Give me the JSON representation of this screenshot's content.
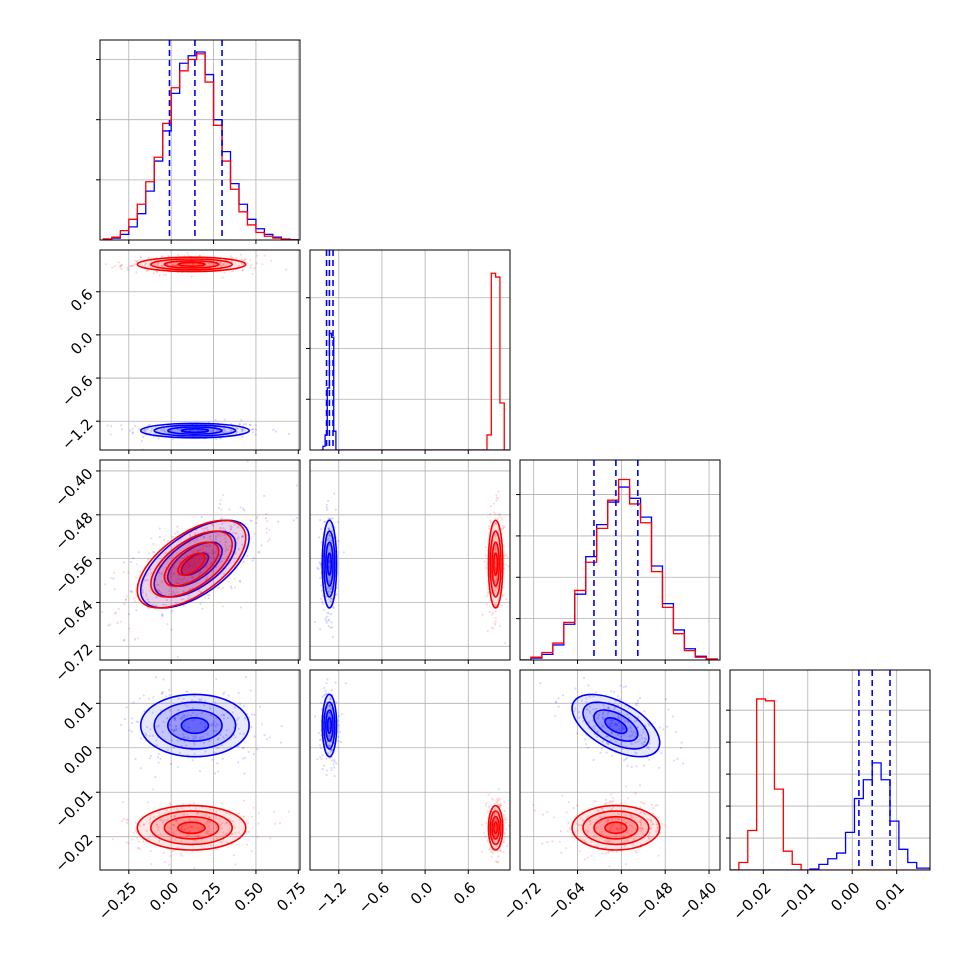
{
  "colors": {
    "blue": "#0000ff",
    "red": "#ff0000",
    "grid": "#b0b0b0"
  },
  "chart_data": {
    "type": "corner",
    "params": [
      {
        "range": [
          -0.42,
          0.76
        ],
        "ticks": [
          -0.25,
          0.0,
          0.25,
          0.5,
          0.75
        ],
        "tick_labels": [
          "−0.25",
          "0.00",
          "0.25",
          "0.50",
          "0.75"
        ]
      },
      {
        "range": [
          -1.6,
          1.18
        ],
        "ticks": [
          -1.2,
          -0.6,
          0.0,
          0.6
        ],
        "tick_labels": [
          "−1.2",
          "−0.6",
          "0.0",
          "0.6"
        ]
      },
      {
        "range": [
          -0.745,
          -0.38
        ],
        "ticks": [
          -0.72,
          -0.64,
          -0.56,
          -0.48,
          -0.4
        ],
        "tick_labels": [
          "−0.72",
          "−0.64",
          "−0.56",
          "−0.48",
          "−0.40"
        ]
      },
      {
        "range": [
          -0.0275,
          0.0175
        ],
        "ticks": [
          -0.02,
          -0.01,
          0.0,
          0.01
        ],
        "tick_labels": [
          "−0.02",
          "−0.01",
          "0.00",
          "0.01"
        ]
      }
    ],
    "series": [
      {
        "color": "blue",
        "means": [
          0.14,
          -1.33,
          -0.57,
          0.005
        ],
        "sds": [
          0.16,
          0.05,
          0.04,
          0.0035
        ],
        "quantiles": [
          [
            -0.01,
            0.14,
            0.3
          ],
          [
            -1.37,
            -1.33,
            -1.28
          ],
          [
            -0.61,
            -0.57,
            -0.53
          ],
          [
            0.0015,
            0.0045,
            0.0085
          ]
        ],
        "corr_13": 0.6,
        "corr_34": -0.55
      },
      {
        "color": "red",
        "means": [
          0.12,
          0.98,
          -0.57,
          -0.018
        ],
        "sds": [
          0.16,
          0.05,
          0.04,
          0.0025
        ],
        "corr_13": 0.6,
        "corr_34": 0.0
      }
    ],
    "histograms": [
      {
        "param": 0,
        "ymax": 1.0,
        "ticks": [
          0.32,
          0.64,
          0.96
        ],
        "edges": [
          -0.4,
          -0.35,
          -0.3,
          -0.25,
          -0.2,
          -0.15,
          -0.1,
          -0.05,
          0.0,
          0.05,
          0.1,
          0.15,
          0.2,
          0.25,
          0.3,
          0.35,
          0.4,
          0.45,
          0.5,
          0.55,
          0.6,
          0.65,
          0.7,
          0.75
        ],
        "blue": [
          0.005,
          0.01,
          0.03,
          0.07,
          0.14,
          0.26,
          0.42,
          0.58,
          0.78,
          0.94,
          0.98,
          1.0,
          0.88,
          0.64,
          0.47,
          0.3,
          0.19,
          0.11,
          0.06,
          0.03,
          0.015,
          0.005,
          0.002
        ],
        "red": [
          0.005,
          0.015,
          0.05,
          0.11,
          0.19,
          0.31,
          0.44,
          0.62,
          0.81,
          0.9,
          0.96,
          0.99,
          0.84,
          0.61,
          0.42,
          0.27,
          0.15,
          0.08,
          0.04,
          0.02,
          0.01,
          0.004,
          0.001
        ]
      },
      {
        "param": 1,
        "ymax": 1.0,
        "ticks": [
          0.27,
          0.54,
          0.81
        ],
        "edges": [
          -1.45,
          -1.42,
          -1.39,
          -1.36,
          -1.33,
          -1.3,
          -1.27,
          -1.24,
          0.86,
          0.92,
          0.98,
          1.04,
          1.1,
          1.16
        ],
        "blue": [
          0.0,
          0.02,
          0.08,
          0.33,
          0.62,
          0.6,
          0.1,
          0.0,
          0.0,
          0.0,
          0.0,
          0.0,
          0.0
        ],
        "red": [
          0.0,
          0.0,
          0.0,
          0.0,
          0.0,
          0.0,
          0.0,
          0.0,
          0.08,
          0.94,
          0.92,
          0.25,
          0.0
        ]
      },
      {
        "param": 2,
        "ymax": 1.0,
        "ticks": [
          0.22,
          0.44,
          0.66,
          0.88
        ],
        "edges": [
          -0.745,
          -0.725,
          -0.705,
          -0.685,
          -0.665,
          -0.645,
          -0.625,
          -0.605,
          -0.585,
          -0.565,
          -0.545,
          -0.525,
          -0.505,
          -0.485,
          -0.465,
          -0.445,
          -0.425,
          -0.405,
          -0.385
        ],
        "blue": [
          0.0,
          0.01,
          0.03,
          0.08,
          0.19,
          0.35,
          0.55,
          0.72,
          0.84,
          0.92,
          0.86,
          0.76,
          0.5,
          0.3,
          0.16,
          0.06,
          0.02,
          0.005
        ],
        "red": [
          0.0,
          0.015,
          0.04,
          0.09,
          0.2,
          0.37,
          0.52,
          0.7,
          0.85,
          0.96,
          0.83,
          0.73,
          0.47,
          0.28,
          0.14,
          0.05,
          0.015,
          0.005
        ]
      },
      {
        "param": 3,
        "ymax": 1.0,
        "ticks": [
          0.17,
          0.34,
          0.51,
          0.68,
          0.85
        ],
        "edges": [
          -0.0275,
          -0.0255,
          -0.0235,
          -0.0215,
          -0.0195,
          -0.0175,
          -0.0155,
          -0.0135,
          -0.0115,
          -0.0095,
          -0.0075,
          -0.0055,
          -0.0035,
          -0.0015,
          0.0005,
          0.0025,
          0.0045,
          0.0065,
          0.0085,
          0.0105,
          0.0125,
          0.0145,
          0.0175
        ],
        "blue": [
          0.0,
          0.0,
          0.0,
          0.0,
          0.0,
          0.0,
          0.0,
          0.0,
          0.0,
          0.005,
          0.03,
          0.06,
          0.09,
          0.2,
          0.38,
          0.48,
          0.57,
          0.48,
          0.26,
          0.11,
          0.04,
          0.01
        ],
        "red": [
          0.0,
          0.04,
          0.21,
          0.91,
          0.9,
          0.43,
          0.1,
          0.03,
          0.0,
          0.0,
          0.0,
          0.0,
          0.0,
          0.0,
          0.0,
          0.0,
          0.0,
          0.0,
          0.0,
          0.0,
          0.0,
          0.0
        ]
      }
    ],
    "hist_quantiles_blue": [
      [
        -0.01,
        0.14,
        0.3
      ],
      [
        -1.37,
        -1.33,
        -1.28
      ],
      [
        -0.61,
        -0.57,
        -0.53
      ],
      [
        0.0015,
        0.0045,
        0.0085
      ]
    ],
    "grid": true,
    "contour_sigmas": [
      0.5,
      1.0,
      1.5,
      2.0
    ]
  }
}
